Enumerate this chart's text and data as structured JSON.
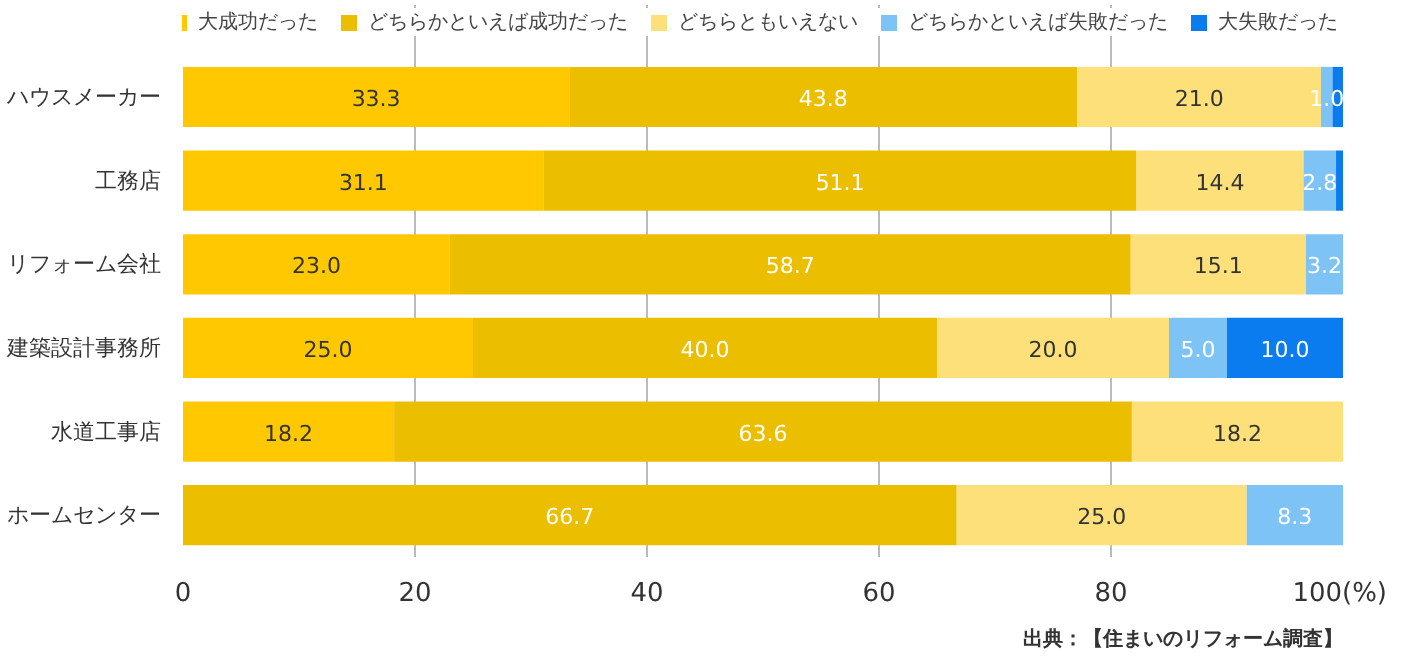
{
  "chart_data": {
    "type": "bar",
    "orientation": "horizontal",
    "stacked": true,
    "categories": [
      "ハウスメーカー",
      "工務店",
      "リフォーム会社",
      "建築設計事務所",
      "水道工事店",
      "ホームセンター"
    ],
    "series": [
      {
        "name": "大成功だった",
        "color": "#ffc800",
        "values": [
          33.3,
          31.1,
          23.0,
          25.0,
          18.2,
          0
        ],
        "value_labels": [
          "33.3",
          "31.1",
          "23.0",
          "25.0",
          "18.2",
          null
        ]
      },
      {
        "name": "どちらかといえば成功だった",
        "color": "#ebbe00",
        "values": [
          43.8,
          51.1,
          58.7,
          40.0,
          63.6,
          66.7
        ],
        "value_labels": [
          "43.8",
          "51.1",
          "58.7",
          "40.0",
          "63.6",
          "66.7"
        ]
      },
      {
        "name": "どちらともいえない",
        "color": "#fde07a",
        "values": [
          21.0,
          14.4,
          15.1,
          20.0,
          18.2,
          25.0
        ],
        "value_labels": [
          "21.0",
          "14.4",
          "15.1",
          "20.0",
          "18.2",
          "25.0"
        ]
      },
      {
        "name": "どちらかといえば失敗だった",
        "color": "#7dc3f5",
        "values": [
          1.0,
          2.8,
          3.2,
          5.0,
          0,
          8.3
        ],
        "value_labels": [
          "1.0",
          "2.8",
          "3.2",
          "5.0",
          null,
          "8.3"
        ]
      },
      {
        "name": "大失敗だった",
        "color": "#0a7cf0",
        "values": [
          0.9,
          0.6,
          0,
          10.0,
          0,
          0
        ],
        "value_labels": [
          null,
          null,
          null,
          "10.0",
          null,
          null
        ]
      }
    ],
    "xlim": [
      0,
      100
    ],
    "xticks": [
      0,
      20,
      40,
      60,
      80,
      {
        "value": 100,
        "label": "100(%)"
      }
    ],
    "grid": "x",
    "legend": "top right",
    "annotations": [
      "出典：【住まいのリフォーム調査】"
    ]
  }
}
